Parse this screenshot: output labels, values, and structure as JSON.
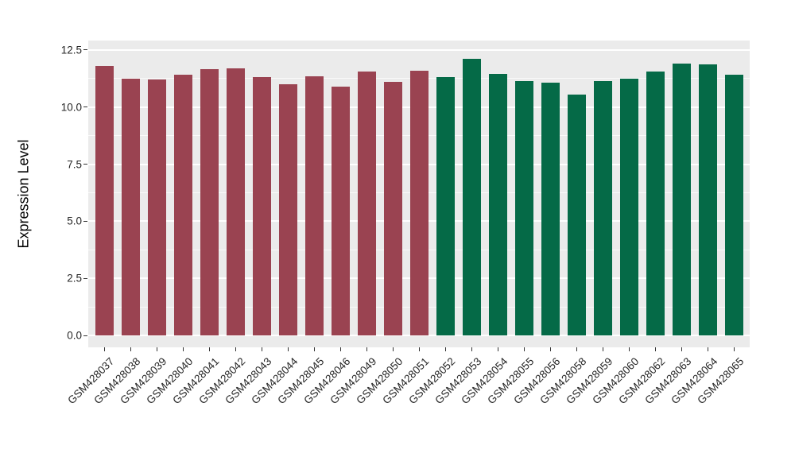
{
  "chart_data": {
    "type": "bar",
    "title": "",
    "xlabel": "",
    "ylabel": "Expression Level",
    "categories": [
      "GSM428037",
      "GSM428038",
      "GSM428039",
      "GSM428040",
      "GSM428041",
      "GSM428042",
      "GSM428043",
      "GSM428044",
      "GSM428045",
      "GSM428046",
      "GSM428049",
      "GSM428050",
      "GSM428051",
      "GSM428052",
      "GSM428053",
      "GSM428054",
      "GSM428055",
      "GSM428056",
      "GSM428058",
      "GSM428059",
      "GSM428060",
      "GSM428062",
      "GSM428063",
      "GSM428064",
      "GSM428065"
    ],
    "values": [
      11.8,
      11.25,
      11.2,
      11.4,
      11.65,
      11.7,
      11.3,
      11.0,
      11.35,
      10.9,
      11.55,
      11.1,
      11.6,
      11.3,
      12.1,
      11.45,
      11.15,
      11.05,
      10.55,
      11.15,
      11.25,
      11.55,
      11.9,
      11.85,
      11.4
    ],
    "bar_colors": [
      "#9A4351",
      "#9A4351",
      "#9A4351",
      "#9A4351",
      "#9A4351",
      "#9A4351",
      "#9A4351",
      "#9A4351",
      "#9A4351",
      "#9A4351",
      "#9A4351",
      "#9A4351",
      "#9A4351",
      "#056A47",
      "#056A47",
      "#056A47",
      "#056A47",
      "#056A47",
      "#056A47",
      "#056A47",
      "#056A47",
      "#056A47",
      "#056A47",
      "#056A47",
      "#056A47"
    ],
    "color_groups": [
      {
        "color": "#9A4351",
        "label_range": "GSM428037-GSM428051",
        "count": 13
      },
      {
        "color": "#056A47",
        "label_range": "GSM428052-GSM428065",
        "count": 12
      }
    ],
    "y_major_ticks": [
      0.0,
      2.5,
      5.0,
      7.5,
      10.0,
      12.5
    ],
    "y_tick_labels": [
      "0.0",
      "2.5",
      "5.0",
      "7.5",
      "10.0",
      "12.5"
    ],
    "y_minor_ticks": [
      1.25,
      3.75,
      6.25,
      8.75,
      11.25
    ],
    "ylim": [
      -0.55,
      12.95
    ],
    "grid": true,
    "legend_position": "none",
    "panel_background": "#EBEBEB",
    "gridline_color": "#FFFFFF",
    "x_label_rotation_deg": 45
  }
}
